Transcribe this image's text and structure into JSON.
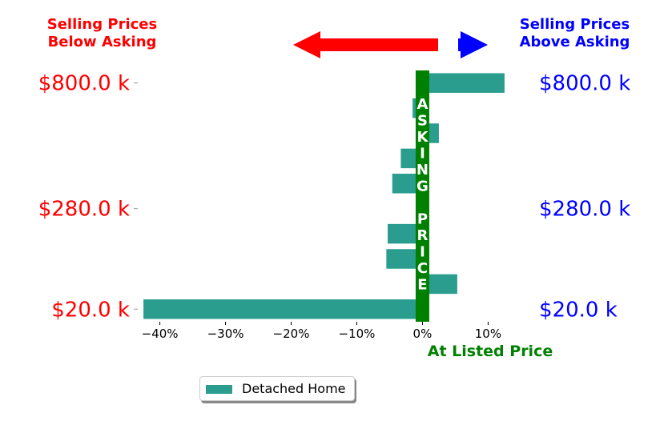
{
  "header": {
    "left_line1": "Selling Prices",
    "left_line2": "Below Asking",
    "right_line1": "Selling Prices",
    "right_line2": "Above Asking"
  },
  "center_text": "ASKING PRICE",
  "at_listed_label": "At Listed Price",
  "colors": {
    "bar": "#2a9d8f",
    "asking_band": "#008000",
    "left_labels": "#ff0000",
    "right_labels": "#0000ff",
    "left_arrow": "#ff0000",
    "right_arrow": "#0000ff"
  },
  "legend": {
    "label": "Detached Home"
  },
  "chart_data": {
    "type": "bar",
    "orientation": "horizontal",
    "series": [
      {
        "name": "Detached Home",
        "values": [
          12.5,
          -1.5,
          2.5,
          -3.3,
          -4.6,
          1.0,
          -5.3,
          -5.5,
          5.3,
          -42.5
        ]
      }
    ],
    "xticks": [
      "−40%",
      "−30%",
      "−20%",
      "−10%",
      "0%",
      "10%"
    ],
    "xtick_values": [
      -40,
      -30,
      -20,
      -10,
      0,
      10
    ],
    "xlim": [
      -43,
      13
    ],
    "y_labels_left": [
      "$800.0 k",
      "$280.0 k",
      "$20.0 k"
    ],
    "y_labels_right": [
      "$800.0 k",
      "$280.0 k",
      "$20.0 k"
    ],
    "y_label_rows": [
      0,
      5,
      9
    ],
    "grid": false,
    "legend_position": "bottom-center"
  }
}
